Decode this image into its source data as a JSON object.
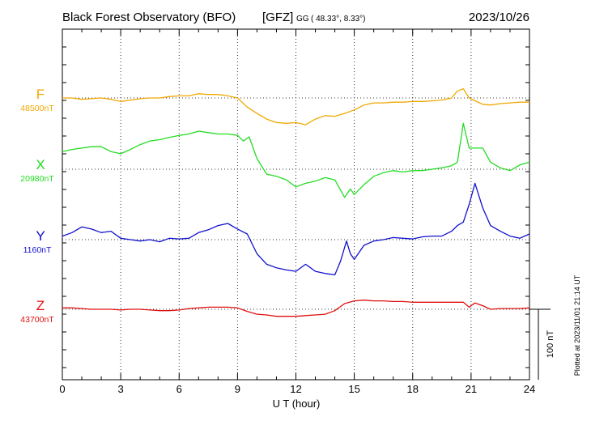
{
  "header": {
    "station": "Black Forest Observatory (BFO)",
    "org": "[GFZ]",
    "coords_prefix": "GG",
    "coords": "( 48.33°,   8.33°)",
    "date": "2023/10/26"
  },
  "footnote": "Plotted at 2023/11/01 21:14 UT",
  "chart_data": {
    "type": "line",
    "xlabel": "U T (hour)",
    "xlim": [
      0,
      24
    ],
    "xticks": [
      0,
      3,
      6,
      9,
      12,
      15,
      18,
      21,
      24
    ],
    "xtick_labels": [
      "0",
      "3",
      "6",
      "9",
      "12",
      "15",
      "18",
      "21",
      "24"
    ],
    "scale_bar": {
      "label": "100 nT",
      "value": 100
    },
    "grid": true,
    "series": [
      {
        "name": "F",
        "baseline_label": "48500nT",
        "baseline": 48500,
        "color": "#f0a800",
        "x": [
          0,
          0.5,
          1,
          1.5,
          2,
          2.5,
          3,
          3.5,
          4,
          4.5,
          5,
          5.5,
          6,
          6.5,
          7,
          7.5,
          8,
          8.5,
          9,
          9.5,
          10,
          10.5,
          11,
          11.5,
          12,
          12.5,
          13,
          13.5,
          14,
          14.5,
          15,
          15.5,
          16,
          16.5,
          17,
          17.5,
          18,
          18.5,
          19,
          19.5,
          20,
          20.3,
          20.6,
          20.9,
          21.2,
          21.6,
          22,
          22.5,
          23,
          23.5,
          24
        ],
        "y": [
          48500,
          48500,
          48498,
          48499,
          48500,
          48498,
          48495,
          48497,
          48499,
          48500,
          48500,
          48502,
          48503,
          48503,
          48506,
          48505,
          48505,
          48503,
          48500,
          48487,
          48478,
          48470,
          48465,
          48464,
          48465,
          48462,
          48470,
          48475,
          48474,
          48478,
          48483,
          48490,
          48493,
          48493,
          48494,
          48494,
          48495,
          48495,
          48496,
          48497,
          48500,
          48510,
          48513,
          48500,
          48496,
          48491,
          48490,
          48492,
          48493,
          48494,
          48494
        ]
      },
      {
        "name": "X",
        "baseline_label": "20980nT",
        "baseline": 20980,
        "color": "#22dd22",
        "x": [
          0,
          0.5,
          1,
          1.5,
          2,
          2.5,
          3,
          3.5,
          4,
          4.5,
          5,
          5.5,
          6,
          6.5,
          7,
          7.5,
          8,
          8.5,
          9,
          9.3,
          9.6,
          10,
          10.5,
          11,
          11.5,
          12,
          12.5,
          13,
          13.5,
          14,
          14.5,
          14.8,
          15,
          15.5,
          16,
          16.5,
          17,
          17.5,
          18,
          18.5,
          19,
          19.5,
          20,
          20.3,
          20.6,
          20.9,
          21.2,
          21.6,
          22,
          22.5,
          23,
          23.5,
          24
        ],
        "y": [
          21005,
          21008,
          21010,
          21012,
          21012,
          21005,
          21002,
          21008,
          21015,
          21020,
          21022,
          21025,
          21028,
          21030,
          21034,
          21032,
          21030,
          21030,
          21028,
          21020,
          21026,
          20995,
          20973,
          20970,
          20965,
          20955,
          20960,
          20963,
          20968,
          20965,
          20940,
          20952,
          20944,
          20958,
          20970,
          20975,
          20978,
          20976,
          20978,
          20978,
          20980,
          20982,
          20985,
          20990,
          21045,
          21010,
          21010,
          21010,
          20990,
          20982,
          20978,
          20986,
          20990
        ]
      },
      {
        "name": "Y",
        "baseline_label": "1160nT",
        "baseline": 1160,
        "color": "#1010cc",
        "x": [
          0,
          0.5,
          1,
          1.5,
          2,
          2.5,
          3,
          3.5,
          4,
          4.5,
          5,
          5.5,
          6,
          6.5,
          7,
          7.5,
          8,
          8.5,
          9,
          9.5,
          10,
          10.5,
          11,
          11.5,
          12,
          12.5,
          13,
          13.5,
          14,
          14.3,
          14.6,
          14.8,
          15,
          15.5,
          16,
          16.5,
          17,
          17.5,
          18,
          18.5,
          19,
          19.5,
          20,
          20.3,
          20.6,
          20.9,
          21.2,
          21.6,
          22,
          22.5,
          23,
          23.5,
          24
        ],
        "y": [
          1165,
          1170,
          1178,
          1175,
          1170,
          1172,
          1162,
          1160,
          1158,
          1160,
          1157,
          1162,
          1161,
          1162,
          1170,
          1174,
          1180,
          1183,
          1175,
          1168,
          1140,
          1125,
          1120,
          1117,
          1115,
          1125,
          1115,
          1112,
          1110,
          1130,
          1158,
          1140,
          1132,
          1152,
          1158,
          1160,
          1163,
          1162,
          1161,
          1164,
          1165,
          1165,
          1172,
          1180,
          1185,
          1210,
          1240,
          1205,
          1180,
          1172,
          1165,
          1162,
          1168
        ]
      },
      {
        "name": "Z",
        "baseline_label": "43700nT",
        "baseline": 43700,
        "color": "#e01010",
        "x": [
          0,
          0.5,
          1,
          1.5,
          2,
          2.5,
          3,
          3.5,
          4,
          4.5,
          5,
          5.5,
          6,
          6.5,
          7,
          7.5,
          8,
          8.5,
          9,
          9.5,
          10,
          10.5,
          11,
          11.5,
          12,
          12.5,
          13,
          13.5,
          14,
          14.5,
          15,
          15.5,
          16,
          16.5,
          17,
          17.5,
          18,
          18.5,
          19,
          19.5,
          20,
          20.3,
          20.6,
          20.9,
          21.2,
          21.6,
          22,
          22.5,
          23,
          23.5,
          24
        ],
        "y": [
          43702,
          43702,
          43701,
          43700,
          43700,
          43700,
          43699,
          43700,
          43700,
          43699,
          43698,
          43698,
          43699,
          43701,
          43702,
          43703,
          43703,
          43703,
          43702,
          43697,
          43693,
          43692,
          43690,
          43690,
          43690,
          43691,
          43692,
          43693,
          43698,
          43708,
          43712,
          43713,
          43712,
          43712,
          43711,
          43711,
          43710,
          43710,
          43710,
          43710,
          43710,
          43710,
          43710,
          43703,
          43709,
          43705,
          43700,
          43701,
          43701,
          43701,
          43702
        ]
      }
    ]
  }
}
